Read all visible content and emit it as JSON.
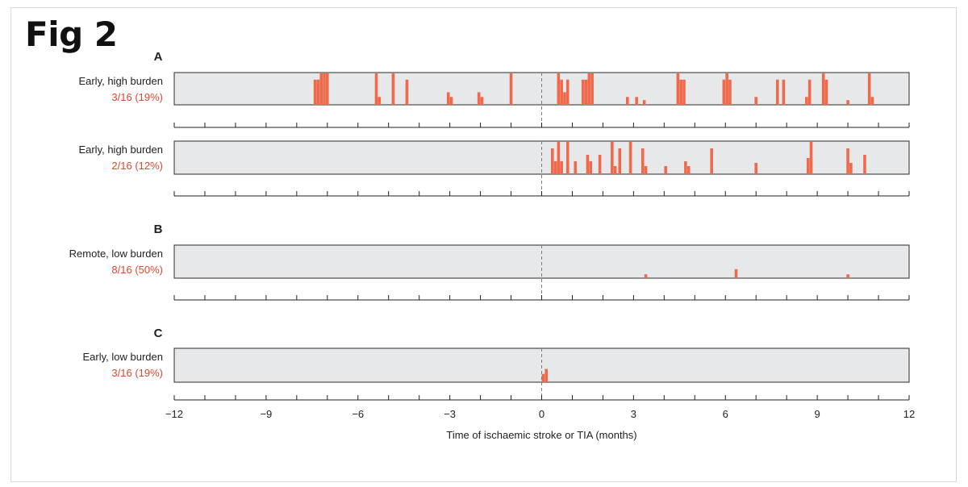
{
  "figure_label": "Fig 2",
  "colors": {
    "event": "#ef6a4c",
    "label_red": "#e0462c",
    "track_bg": "#e7e8ea",
    "dashed": "#6f7f92"
  },
  "chart_data": {
    "type": "event-timeline",
    "xlabel": "Time of ischaemic stroke or TIA (months)",
    "xlim": [
      -12,
      12
    ],
    "tick_labels": [
      "−12",
      "−9",
      "−6",
      "−3",
      "0",
      "3",
      "6",
      "9",
      "12"
    ],
    "tick_label_values": [
      -12,
      -9,
      -6,
      -3,
      0,
      3,
      6,
      9,
      12
    ],
    "minor_tick_step": 1,
    "reference_line_at": 0,
    "height_scale": "relative burden 0-1",
    "panels": [
      {
        "letter": "A",
        "label": "Early, high burden",
        "stat": "3/16 (19%)",
        "events": [
          {
            "t": -7.4,
            "h": 0.8
          },
          {
            "t": -7.3,
            "h": 0.8
          },
          {
            "t": -7.2,
            "h": 1.0
          },
          {
            "t": -7.1,
            "h": 1.0
          },
          {
            "t": -7.0,
            "h": 1.0
          },
          {
            "t": -5.4,
            "h": 1.0
          },
          {
            "t": -5.3,
            "h": 0.25
          },
          {
            "t": -4.85,
            "h": 1.0
          },
          {
            "t": -4.4,
            "h": 0.8
          },
          {
            "t": -3.05,
            "h": 0.4
          },
          {
            "t": -2.95,
            "h": 0.25
          },
          {
            "t": -2.05,
            "h": 0.4
          },
          {
            "t": -1.95,
            "h": 0.25
          },
          {
            "t": -1.0,
            "h": 1.0
          },
          {
            "t": 0.55,
            "h": 1.0
          },
          {
            "t": 0.65,
            "h": 0.8
          },
          {
            "t": 0.75,
            "h": 0.4
          },
          {
            "t": 0.85,
            "h": 0.8
          },
          {
            "t": 1.35,
            "h": 0.8
          },
          {
            "t": 1.45,
            "h": 0.8
          },
          {
            "t": 1.55,
            "h": 1.0
          },
          {
            "t": 1.65,
            "h": 1.0
          },
          {
            "t": 2.8,
            "h": 0.25
          },
          {
            "t": 3.1,
            "h": 0.25
          },
          {
            "t": 3.35,
            "h": 0.15
          },
          {
            "t": 4.45,
            "h": 1.0
          },
          {
            "t": 4.55,
            "h": 0.8
          },
          {
            "t": 4.65,
            "h": 0.8
          },
          {
            "t": 5.95,
            "h": 0.8
          },
          {
            "t": 6.05,
            "h": 1.0
          },
          {
            "t": 6.15,
            "h": 0.8
          },
          {
            "t": 7.0,
            "h": 0.25
          },
          {
            "t": 7.7,
            "h": 0.8
          },
          {
            "t": 7.9,
            "h": 0.8
          },
          {
            "t": 8.65,
            "h": 0.25
          },
          {
            "t": 8.75,
            "h": 0.8
          },
          {
            "t": 9.2,
            "h": 1.0
          },
          {
            "t": 9.3,
            "h": 0.8
          },
          {
            "t": 10.0,
            "h": 0.15
          },
          {
            "t": 10.7,
            "h": 1.0
          },
          {
            "t": 10.8,
            "h": 0.25
          }
        ]
      },
      {
        "letter": "",
        "label": "Early, high burden",
        "stat": "2/16 (12%)",
        "events": [
          {
            "t": 0.35,
            "h": 0.8
          },
          {
            "t": 0.45,
            "h": 0.4
          },
          {
            "t": 0.55,
            "h": 1.0
          },
          {
            "t": 0.65,
            "h": 0.4
          },
          {
            "t": 0.85,
            "h": 1.0
          },
          {
            "t": 1.1,
            "h": 0.4
          },
          {
            "t": 1.5,
            "h": 0.6
          },
          {
            "t": 1.6,
            "h": 0.4
          },
          {
            "t": 1.9,
            "h": 0.6
          },
          {
            "t": 2.3,
            "h": 1.0
          },
          {
            "t": 2.4,
            "h": 0.25
          },
          {
            "t": 2.55,
            "h": 0.8
          },
          {
            "t": 2.9,
            "h": 1.0
          },
          {
            "t": 3.3,
            "h": 0.8
          },
          {
            "t": 3.4,
            "h": 0.25
          },
          {
            "t": 4.05,
            "h": 0.25
          },
          {
            "t": 4.7,
            "h": 0.4
          },
          {
            "t": 4.8,
            "h": 0.25
          },
          {
            "t": 5.55,
            "h": 0.8
          },
          {
            "t": 7.0,
            "h": 0.35
          },
          {
            "t": 8.7,
            "h": 0.5
          },
          {
            "t": 8.8,
            "h": 1.0
          },
          {
            "t": 10.0,
            "h": 0.8
          },
          {
            "t": 10.1,
            "h": 0.35
          },
          {
            "t": 10.55,
            "h": 0.6
          }
        ]
      },
      {
        "letter": "B",
        "label": "Remote, low burden",
        "stat": "8/16 (50%)",
        "events": [
          {
            "t": 3.4,
            "h": 0.12
          },
          {
            "t": 6.35,
            "h": 0.28
          },
          {
            "t": 10.0,
            "h": 0.12
          }
        ]
      },
      {
        "letter": "C",
        "label": "Early, low burden",
        "stat": "3/16 (19%)",
        "events": [
          {
            "t": 0.05,
            "h": 0.25
          },
          {
            "t": 0.15,
            "h": 0.4
          }
        ]
      }
    ]
  }
}
